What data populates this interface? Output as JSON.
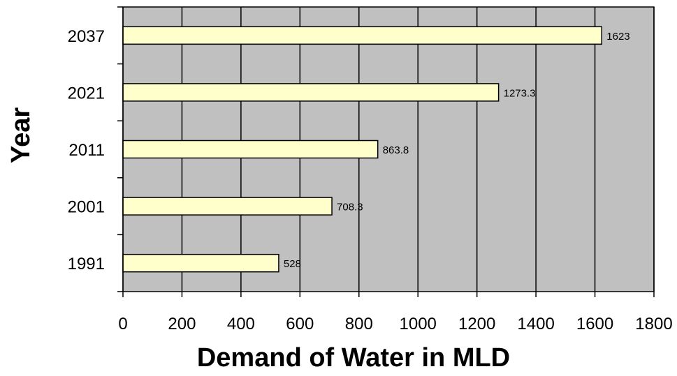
{
  "chart_data": {
    "type": "bar",
    "orientation": "horizontal",
    "categories": [
      "1991",
      "2001",
      "2011",
      "2021",
      "2037"
    ],
    "values": [
      528,
      708.3,
      863.8,
      1273.3,
      1623
    ],
    "data_labels": [
      "528",
      "708.3",
      "863.8",
      "1273.3",
      "1623"
    ],
    "xlabel": "Demand of Water in MLD",
    "ylabel": "Year",
    "xlim": [
      0,
      1800
    ],
    "xticks": [
      0,
      200,
      400,
      600,
      800,
      1000,
      1200,
      1400,
      1600,
      1800
    ],
    "grid": "vertical",
    "legend": "none",
    "colors": {
      "bar_fill": "#ffffcc",
      "bar_stroke": "#000000",
      "plot_background": "#c0c0c0",
      "gridline": "#000000"
    }
  }
}
